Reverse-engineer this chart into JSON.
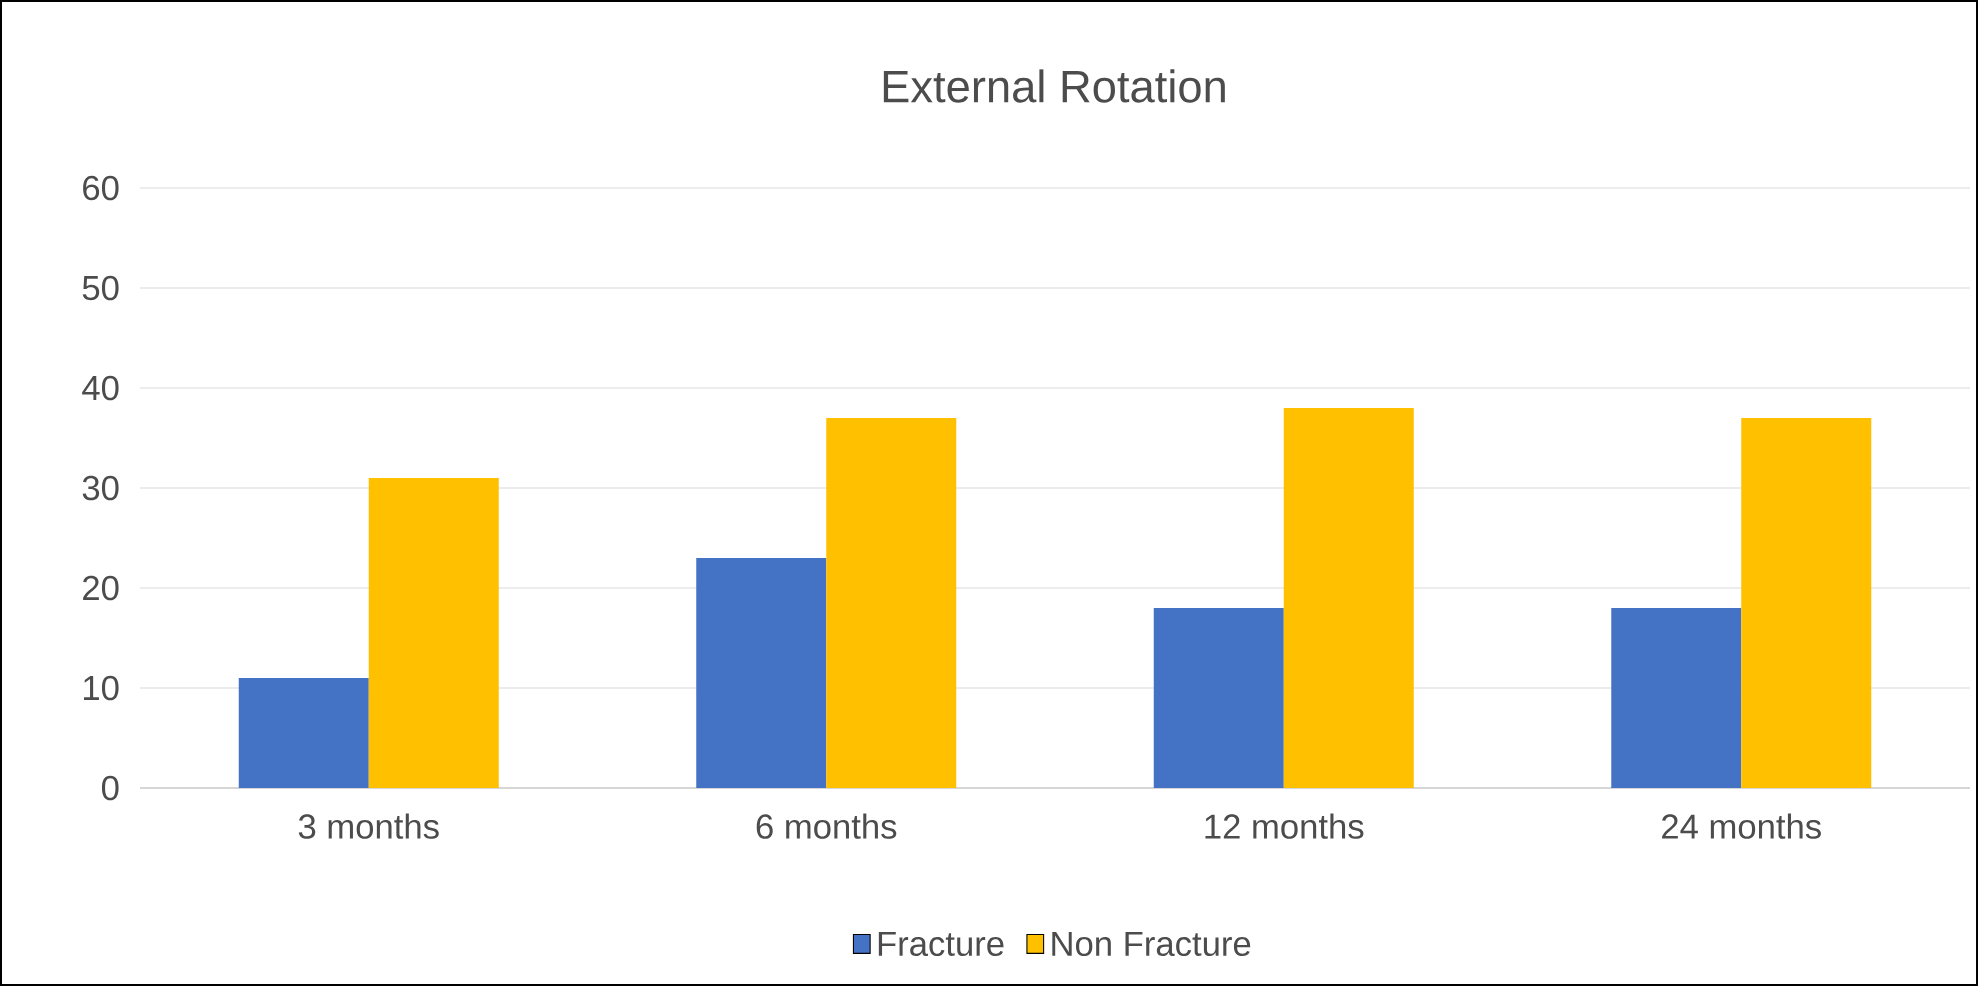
{
  "chart_data": {
    "type": "bar",
    "title": "External Rotation",
    "categories": [
      "3 months",
      "6 months",
      "12 months",
      "24 months"
    ],
    "series": [
      {
        "name": "Fracture",
        "color": "#4472c4",
        "values": [
          11,
          23,
          18,
          18
        ]
      },
      {
        "name": "Non Fracture",
        "color": "#ffc000",
        "values": [
          31,
          37,
          38,
          37
        ]
      }
    ],
    "ylim": [
      0,
      60
    ],
    "yticks": [
      0,
      10,
      20,
      30,
      40,
      50,
      60
    ],
    "grid": "y",
    "legend": "bottom"
  }
}
